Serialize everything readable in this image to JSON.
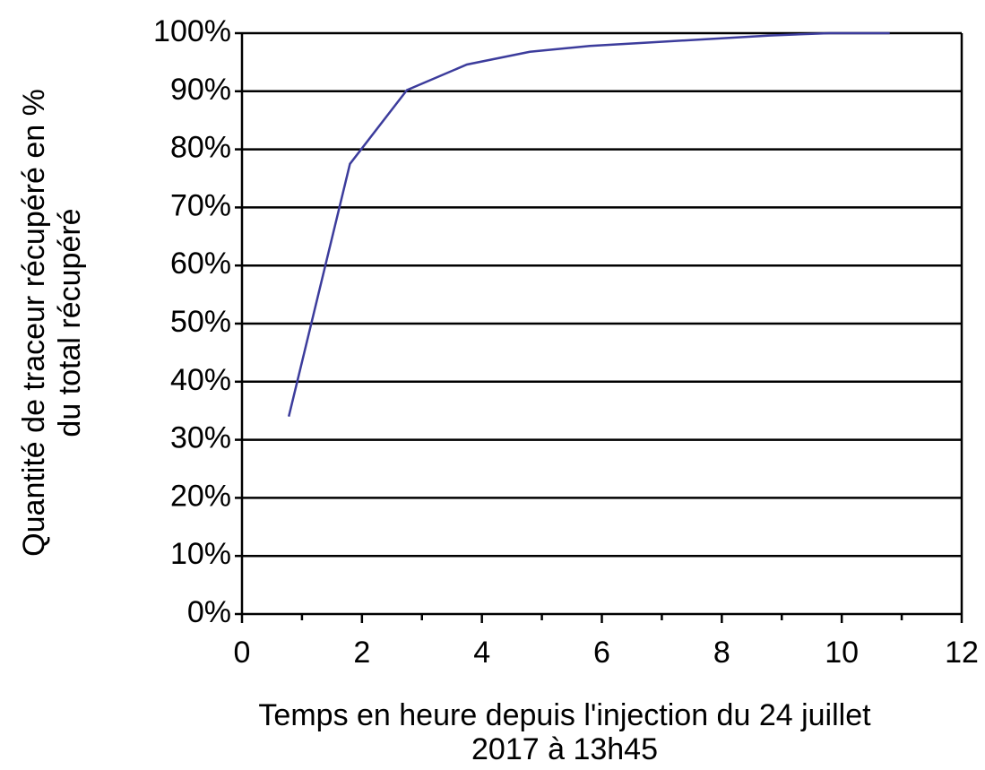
{
  "chart_data": {
    "type": "line",
    "xlabel": [
      "Temps en heure depuis l'injection du 24 juillet",
      "2017 à 13h45"
    ],
    "ylabel": [
      "Quantité de traceur récupéré en %",
      "du total récupéré"
    ],
    "x": [
      0.78,
      1.8,
      2.75,
      3.75,
      4.8,
      5.8,
      6.8,
      7.8,
      8.8,
      9.8,
      10.8
    ],
    "series": [
      {
        "name": "Quantité de traceur récupéré",
        "color": "#3c3c9c",
        "values": [
          34,
          77.5,
          90.2,
          94.6,
          96.8,
          97.8,
          98.4,
          99,
          99.6,
          100,
          100
        ]
      }
    ],
    "xlim": [
      0,
      12
    ],
    "xticks": [
      0,
      2,
      4,
      6,
      8,
      10,
      12
    ],
    "ylim": [
      0,
      100
    ],
    "yticks": [
      {
        "value": 0,
        "label": "0%"
      },
      {
        "value": 10,
        "label": "10%"
      },
      {
        "value": 20,
        "label": "20%"
      },
      {
        "value": 30,
        "label": "30%"
      },
      {
        "value": 40,
        "label": "40%"
      },
      {
        "value": 50,
        "label": "50%"
      },
      {
        "value": 60,
        "label": "60%"
      },
      {
        "value": 70,
        "label": "70%"
      },
      {
        "value": 80,
        "label": "80%"
      },
      {
        "value": 90,
        "label": "90%"
      },
      {
        "value": 100,
        "label": "100%"
      }
    ],
    "grid": true
  }
}
